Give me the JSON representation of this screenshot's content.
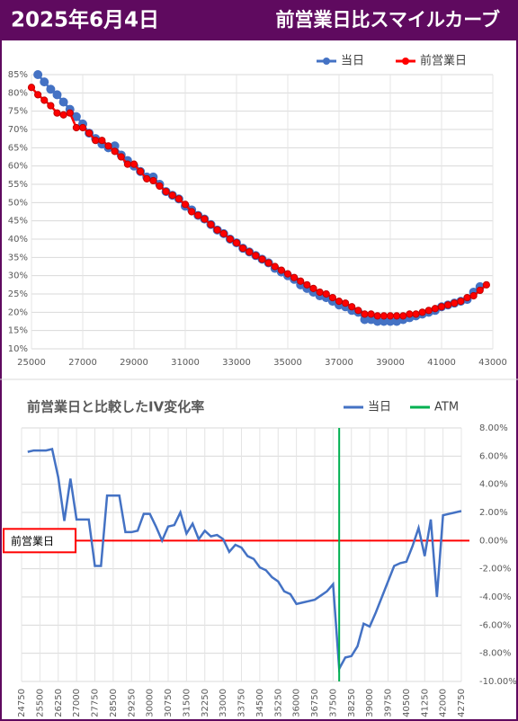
{
  "header": {
    "date": "2025年6月4日",
    "title": "前営業日比スマイルカーブ"
  },
  "chart_data": [
    {
      "type": "line",
      "markers": true,
      "grid": true,
      "x": [
        25000,
        25250,
        25500,
        25750,
        26000,
        26250,
        26500,
        26750,
        27000,
        27250,
        27500,
        27750,
        28000,
        28250,
        28500,
        28750,
        29000,
        29250,
        29500,
        29750,
        30000,
        30250,
        30500,
        30750,
        31000,
        31250,
        31500,
        31750,
        32000,
        32250,
        32500,
        32750,
        33000,
        33250,
        33500,
        33750,
        34000,
        34250,
        34500,
        34750,
        35000,
        35250,
        35500,
        35750,
        36000,
        36250,
        36500,
        36750,
        37000,
        37250,
        37500,
        37750,
        38000,
        38250,
        38500,
        38750,
        39000,
        39250,
        39500,
        39750,
        40000,
        40250,
        40500,
        40750,
        41000,
        41250,
        41500,
        41750,
        42000,
        42250,
        42500,
        42750
      ],
      "series": [
        {
          "name": "当日",
          "color": "#4472c4",
          "values": [
            null,
            85,
            83,
            81,
            79.5,
            77.5,
            75.5,
            73.5,
            71.5,
            69,
            67.5,
            66,
            65,
            65.5,
            63,
            61.5,
            60,
            58.5,
            57,
            57,
            55,
            53,
            52,
            51,
            49,
            48,
            46.5,
            45.5,
            44,
            42.5,
            41.5,
            40,
            39,
            37.5,
            36.5,
            35.5,
            34.5,
            33.5,
            32,
            31,
            30,
            29,
            27.5,
            26.5,
            25.5,
            24.5,
            24,
            23,
            22,
            21.5,
            20.5,
            20,
            18,
            18,
            17.5,
            17.5,
            17.5,
            17.5,
            18,
            18.5,
            19,
            19.5,
            20,
            20.5,
            21.5,
            22,
            22.5,
            23,
            23.5,
            25.5,
            27,
            null
          ]
        },
        {
          "name": "前営業日",
          "color": "#ff0000",
          "values": [
            81.5,
            79.5,
            78,
            76.5,
            74.5,
            74,
            74.5,
            70.5,
            70.5,
            69,
            67,
            67,
            65.5,
            64,
            62.5,
            60.5,
            60.5,
            58.5,
            56.5,
            56,
            54.5,
            53,
            52,
            51,
            49.5,
            47.5,
            46.5,
            45.5,
            44,
            42.5,
            41.5,
            40,
            39,
            37.5,
            36.5,
            35.5,
            34.5,
            33.5,
            32.5,
            31.5,
            30.5,
            29.5,
            28.5,
            27.5,
            26.5,
            25.5,
            25,
            24,
            23,
            22.5,
            21.5,
            20.5,
            19.5,
            19.5,
            19,
            19,
            19,
            19,
            19,
            19.5,
            19.5,
            20,
            20.5,
            21,
            21.5,
            22,
            22.5,
            23,
            24,
            24.5,
            26,
            27.5
          ]
        }
      ],
      "xlim": [
        25000,
        43000
      ],
      "xticks": [
        25000,
        27000,
        29000,
        31000,
        33000,
        35000,
        37000,
        39000,
        41000,
        43000
      ],
      "ylim": [
        10,
        85
      ],
      "yticks": [
        {
          "value": 10,
          "label": "10%"
        },
        {
          "value": 15,
          "label": "15%"
        },
        {
          "value": 20,
          "label": "20%"
        },
        {
          "value": 25,
          "label": "25%"
        },
        {
          "value": 30,
          "label": "30%"
        },
        {
          "value": 35,
          "label": "35%"
        },
        {
          "value": 40,
          "label": "40%"
        },
        {
          "value": 45,
          "label": "45%"
        },
        {
          "value": 50,
          "label": "50%"
        },
        {
          "value": 55,
          "label": "55%"
        },
        {
          "value": 60,
          "label": "60%"
        },
        {
          "value": 65,
          "label": "65%"
        },
        {
          "value": 70,
          "label": "70%"
        },
        {
          "value": 75,
          "label": "75%"
        },
        {
          "value": 80,
          "label": "80%"
        },
        {
          "value": 85,
          "label": "85%"
        }
      ]
    },
    {
      "type": "line",
      "markers": false,
      "grid": true,
      "title": "前営業日と比較したIV変化率",
      "x": [
        25000,
        25250,
        25500,
        25750,
        26000,
        26250,
        26500,
        26750,
        27000,
        27250,
        27500,
        27750,
        28000,
        28250,
        28500,
        28750,
        29000,
        29250,
        29500,
        29750,
        30000,
        30250,
        30500,
        30750,
        31000,
        31250,
        31500,
        31750,
        32000,
        32250,
        32500,
        32750,
        33000,
        33250,
        33500,
        33750,
        34000,
        34250,
        34500,
        34750,
        35000,
        35250,
        35500,
        35750,
        36000,
        36250,
        36500,
        36750,
        37000,
        37250,
        37500,
        37750,
        38000,
        38250,
        38500,
        38750,
        39000,
        39250,
        39500,
        39750,
        40000,
        40250,
        40500,
        40750,
        41000,
        41250,
        41500,
        41750,
        42000,
        42250,
        42500,
        42750
      ],
      "series": [
        {
          "name": "当日",
          "color": "#4472c4",
          "values": [
            6.3,
            6.4,
            6.4,
            6.4,
            6.5,
            4.5,
            1.4,
            4.4,
            1.5,
            1.5,
            1.5,
            -1.8,
            -1.8,
            3.2,
            3.2,
            3.2,
            0.6,
            0.6,
            0.7,
            1.9,
            1.9,
            1.0,
            0.0,
            1.0,
            1.1,
            2.0,
            0.5,
            1.2,
            0.1,
            0.7,
            0.3,
            0.4,
            0.1,
            -0.8,
            -0.3,
            -0.5,
            -1.1,
            -1.3,
            -1.9,
            -2.1,
            -2.6,
            -2.9,
            -3.6,
            -3.8,
            -4.5,
            -4.4,
            -4.3,
            -4.2,
            -3.9,
            -3.6,
            -3.1,
            -9.1,
            -8.3,
            -8.2,
            -7.5,
            -5.9,
            -6.1,
            -5.1,
            -4.0,
            -2.9,
            -1.8,
            -1.6,
            -1.5,
            -0.4,
            0.9,
            -1.1,
            1.5,
            -4.0,
            1.8,
            1.9,
            2.0,
            2.1
          ]
        }
      ],
      "vline": {
        "name": "ATM",
        "color": "#00b050",
        "value": 37750
      },
      "hline": {
        "label": "前営業日",
        "color": "#ff0000",
        "value": 0
      },
      "xlim": [
        24750,
        42750
      ],
      "xticks": [
        24750,
        25500,
        26250,
        27000,
        27750,
        28500,
        29250,
        30000,
        30750,
        31500,
        32250,
        33000,
        33750,
        34500,
        35250,
        36000,
        36750,
        37500,
        38250,
        39000,
        39750,
        40500,
        41250,
        42000,
        42750
      ],
      "ylim": [
        -10,
        8
      ],
      "yticks": [
        {
          "value": 8,
          "label": "8.00%"
        },
        {
          "value": 6,
          "label": "6.00%"
        },
        {
          "value": 4,
          "label": "4.00%"
        },
        {
          "value": 2,
          "label": "2.00%"
        },
        {
          "value": 0,
          "label": "0.00%"
        },
        {
          "value": -2,
          "label": "-2.00%"
        },
        {
          "value": -4,
          "label": "-4.00%"
        },
        {
          "value": -6,
          "label": "-6.00%"
        },
        {
          "value": -8,
          "label": "-8.00%"
        },
        {
          "value": -10,
          "label": "-10.00%"
        }
      ]
    }
  ]
}
